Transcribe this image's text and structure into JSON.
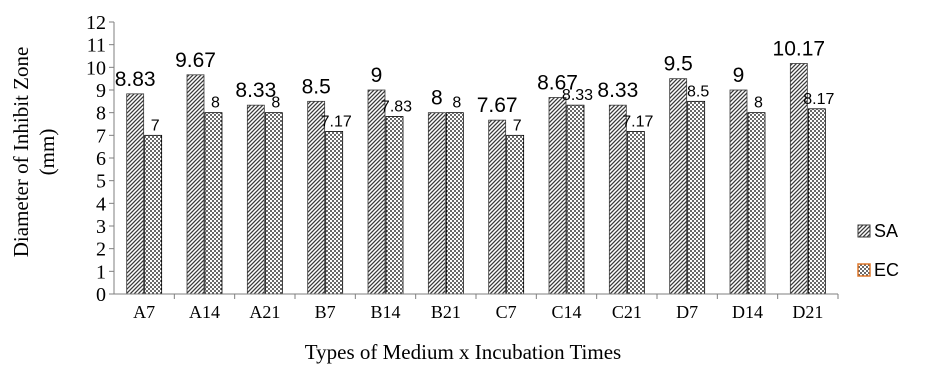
{
  "chart_data": {
    "type": "bar",
    "title": "",
    "xlabel": "Types  of Medium x Incubation Times",
    "ylabel": "Diameter of Inhibit Zone (mm)",
    "ylabel_lines": [
      "Diameter of Inhibit Zone",
      "(mm)"
    ],
    "ylim": [
      0,
      12
    ],
    "yticks": [
      "0",
      "1",
      "2",
      "3",
      "4",
      "5",
      "6",
      "7",
      "8",
      "9",
      "10",
      "11",
      "12"
    ],
    "grid": false,
    "legend_position": "right",
    "categories": [
      "A7",
      "A14",
      "A21",
      "B7",
      "B14",
      "B21",
      "C7",
      "C14",
      "C21",
      "D7",
      "D14",
      "D21"
    ],
    "series": [
      {
        "name": "SA",
        "pattern": "diagonal-hatch",
        "color": "#3a3a3a",
        "values": [
          8.83,
          9.67,
          8.33,
          8.5,
          9,
          8,
          7.67,
          8.67,
          8.33,
          9.5,
          9,
          10.17
        ],
        "labels": [
          "8.83",
          "9.67",
          "8.33",
          "8.5",
          "9",
          "8",
          "7.67",
          "8.67",
          "8.33",
          "9.5",
          "9",
          "10.17"
        ]
      },
      {
        "name": "EC",
        "pattern": "dots",
        "color": "#000000",
        "legend_border_color": "#e07a2e",
        "values": [
          7,
          8,
          8,
          7.17,
          7.83,
          8,
          7,
          8.33,
          7.17,
          8.5,
          8,
          8.17
        ],
        "labels": [
          "7",
          "8",
          "8",
          "7.17",
          "7.83",
          "8",
          "7",
          "8.33",
          "7.17",
          "8.5",
          "8",
          "8.17"
        ]
      }
    ]
  }
}
